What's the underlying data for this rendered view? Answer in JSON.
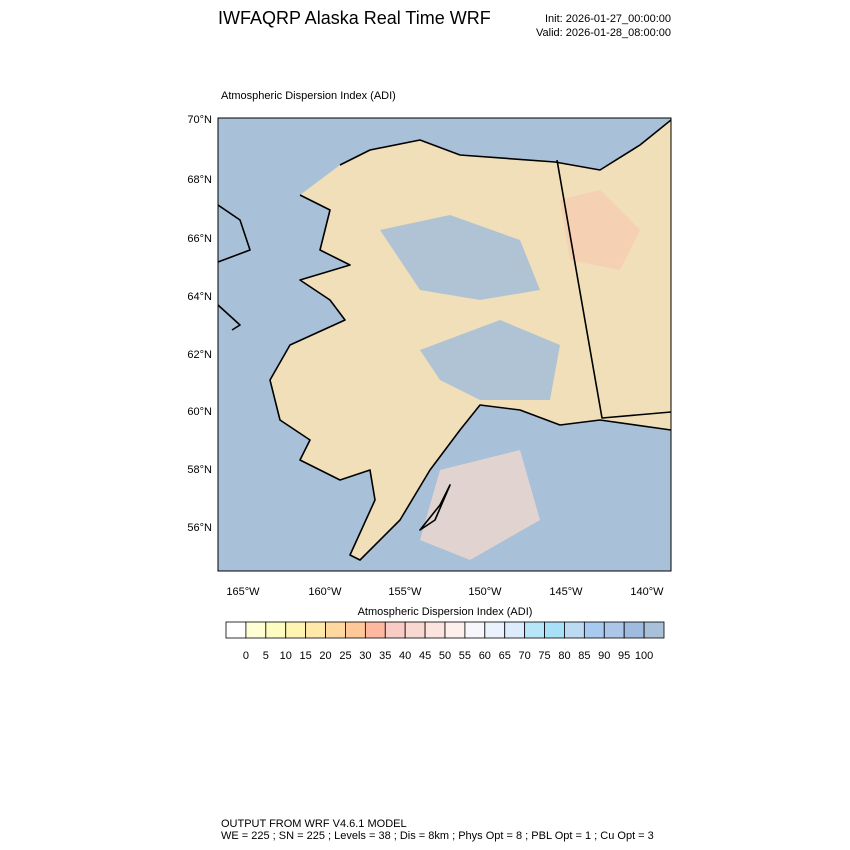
{
  "header": {
    "title": "IWFAQRP Alaska Real Time WRF",
    "init": "Init: 2026-01-27_00:00:00",
    "valid": "Valid: 2026-01-28_08:00:00"
  },
  "map": {
    "title": "Atmospheric Dispersion Index   (ADI)",
    "lat_labels": [
      "70°N",
      "68°N",
      "66°N",
      "64°N",
      "62°N",
      "60°N",
      "58°N",
      "56°N"
    ],
    "lon_labels": [
      "165°W",
      "160°W",
      "155°W",
      "150°W",
      "145°W",
      "140°W"
    ]
  },
  "colorbar": {
    "title": "Atmospheric Dispersion Index  (ADI)",
    "levels": [
      0,
      5,
      10,
      15,
      20,
      25,
      30,
      35,
      40,
      45,
      50,
      55,
      60,
      65,
      70,
      75,
      80,
      85,
      90,
      95,
      100
    ],
    "colors": [
      "#ffffff",
      "#ffffd6",
      "#fffcc2",
      "#fff4b2",
      "#ffe8a8",
      "#ffd8a0",
      "#ffc898",
      "#ffb8a0",
      "#f8ccc4",
      "#f8d8d0",
      "#fbe4de",
      "#fdf0ec",
      "#f6f6fc",
      "#eaf2fe",
      "#dcecfc",
      "#b6e6f8",
      "#a8e0f8",
      "#bcdaf2",
      "#a8caf0",
      "#acc6e8",
      "#9fbbe0",
      "#a8c0d8"
    ]
  },
  "footer": {
    "line1": "OUTPUT FROM WRF V4.6.1 MODEL",
    "line2": "WE = 225 ; SN = 225 ; Levels = 38 ; Dis = 8km ; Phys Opt = 8 ; PBL Opt = 1 ; Cu Opt = 3"
  }
}
